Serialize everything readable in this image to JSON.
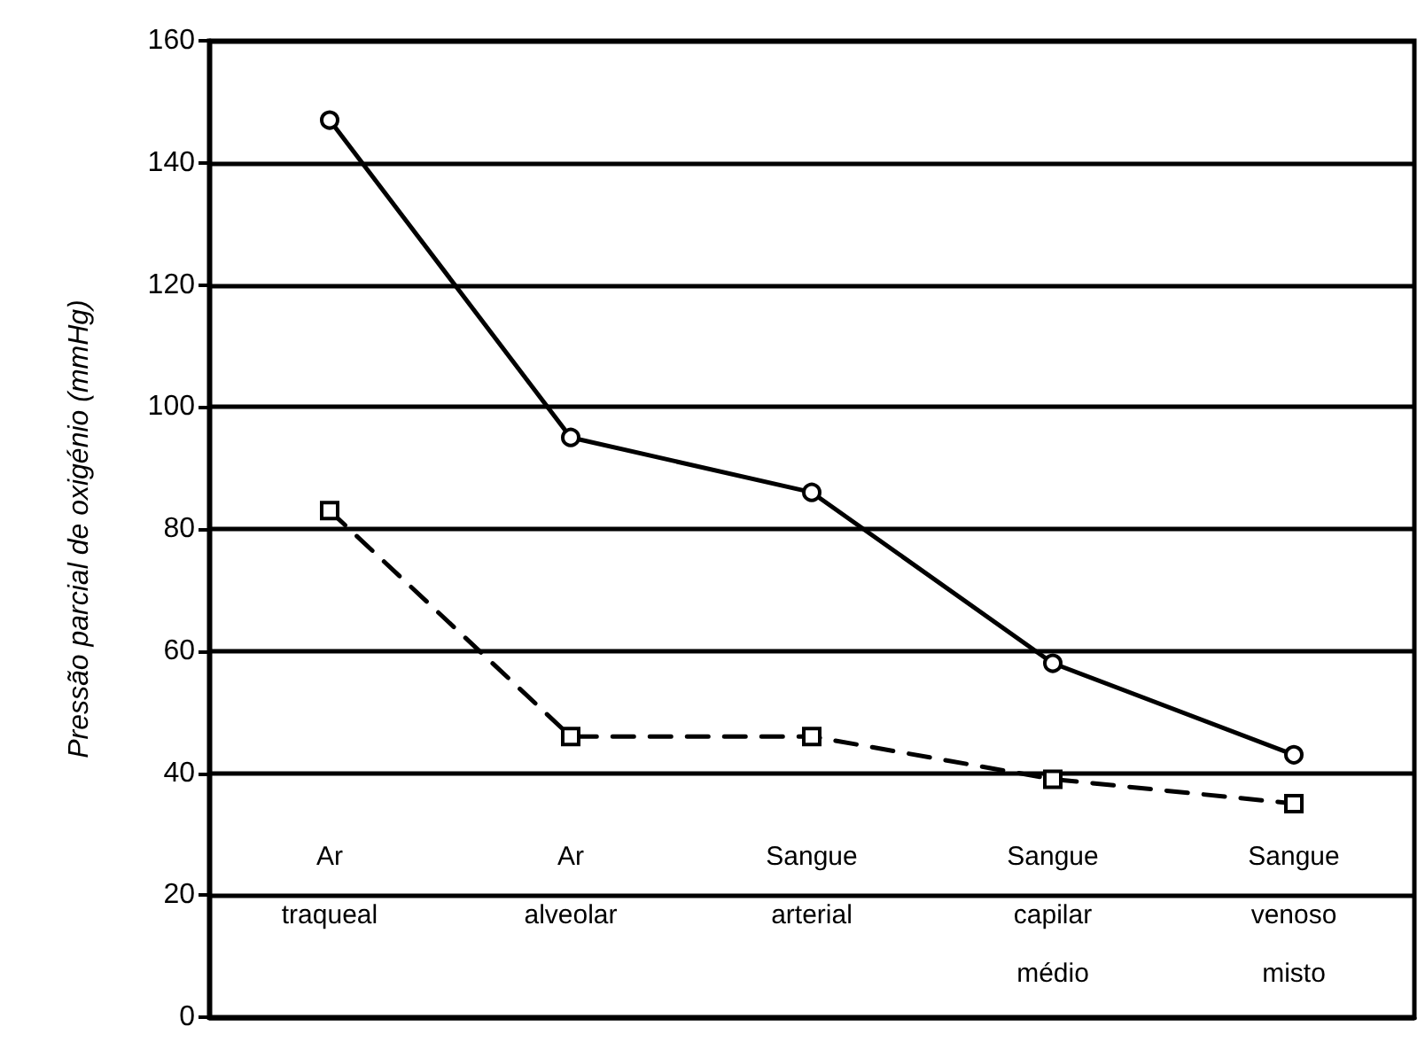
{
  "chart_data": {
    "type": "line",
    "ylabel": "Pressão parcial de oxigénio (mmHg)",
    "categories": [
      "Ar\ntraqueal",
      "Ar\nalveolar",
      "Sangue\narterial",
      "Sangue\ncapilar\nmédio",
      "Sangue\nvenoso\nmisto"
    ],
    "series": [
      {
        "color": "#000000",
        "values": [
          147,
          95,
          86,
          58,
          43
        ],
        "line_style": "solid",
        "marker": "circle"
      },
      {
        "color": "#000000",
        "values": [
          83,
          46,
          46,
          39,
          35
        ],
        "line_style": "dashed",
        "marker": "square"
      }
    ],
    "ylim": [
      0,
      160
    ],
    "yticks": [
      0,
      20,
      40,
      60,
      80,
      100,
      120,
      140,
      160
    ],
    "grid": "y"
  }
}
